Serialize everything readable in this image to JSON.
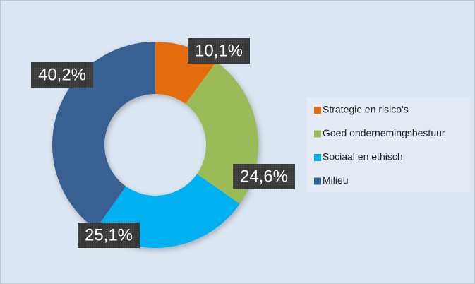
{
  "chart_data": {
    "type": "pie",
    "categories": [
      "Strategie en risico's",
      "Goed ondernemingsbestuur",
      "Sociaal en ethisch",
      "Milieu"
    ],
    "values": [
      10.1,
      24.6,
      25.1,
      40.2
    ],
    "value_labels": [
      "10,1%",
      "24,6%",
      "25,1%",
      "40,2%"
    ],
    "colors": [
      "#e46c0a",
      "#9bbb59",
      "#00b0f0",
      "#376092"
    ],
    "donut": true,
    "legend": "right"
  }
}
